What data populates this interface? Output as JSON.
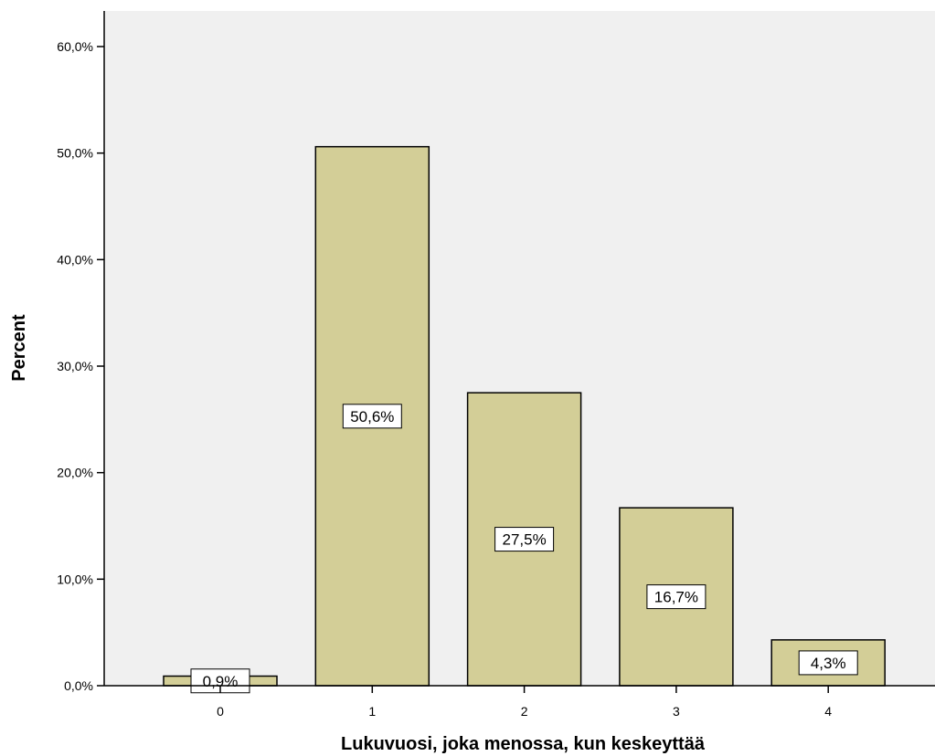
{
  "chart_data": {
    "type": "bar",
    "xlabel": "Lukuvuosi, joka menossa, kun keskeyttää",
    "ylabel": "Percent",
    "categories": [
      "0",
      "1",
      "2",
      "3",
      "4"
    ],
    "values": [
      0.9,
      50.6,
      27.5,
      16.7,
      4.3
    ],
    "data_labels": [
      "0,9%",
      "50,6%",
      "27,5%",
      "16,7%",
      "4,3%"
    ],
    "ylim": [
      0,
      60
    ],
    "y_ticks": [
      0,
      10,
      20,
      30,
      40,
      50,
      60
    ],
    "y_tick_labels": [
      "0,0%",
      "10,0%",
      "20,0%",
      "30,0%",
      "40,0%",
      "50,0%",
      "60,0%"
    ],
    "grid": false,
    "colors": {
      "plot_background": "#f0f0f0",
      "bar_fill": "#d3ce97",
      "bar_stroke": "#000000",
      "label_box": "#ffffff"
    }
  }
}
